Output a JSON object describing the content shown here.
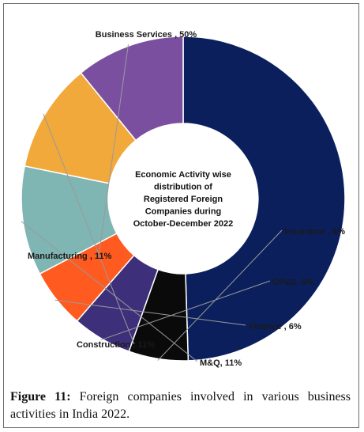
{
  "chart_data": {
    "type": "pie",
    "variant": "donut",
    "center_text": [
      "Economic Activity wise",
      "distribution of",
      "Registered Foreign",
      "Companies during",
      "October-December 2022"
    ],
    "slices": [
      {
        "label": "Business Services",
        "value": 50,
        "display": "Business Services , 50%",
        "color": "#0b1f5c"
      },
      {
        "label": "Insurance",
        "value": 6,
        "display": "Insurance , 6%",
        "color": "#0a0a0a"
      },
      {
        "label": "CP&S",
        "value": 6,
        "display": "CP&S, 6%",
        "color": "#3e2f7a"
      },
      {
        "label": "Finance",
        "value": 6,
        "display": "Finance , 6%",
        "color": "#ff5a1f"
      },
      {
        "label": "M&Q",
        "value": 11,
        "display": "M&Q, 11%",
        "color": "#7fb5b2"
      },
      {
        "label": "Construction",
        "value": 11,
        "display": "Construction , 11%",
        "color": "#f2a93b"
      },
      {
        "label": "Manufacturing",
        "value": 11,
        "display": "Manufacturing , 11%",
        "color": "#7b4fa0"
      }
    ],
    "legend": "none"
  },
  "caption": {
    "label": "Figure 11:",
    "text": " Foreign companies involved in various business activities in India 2022."
  }
}
